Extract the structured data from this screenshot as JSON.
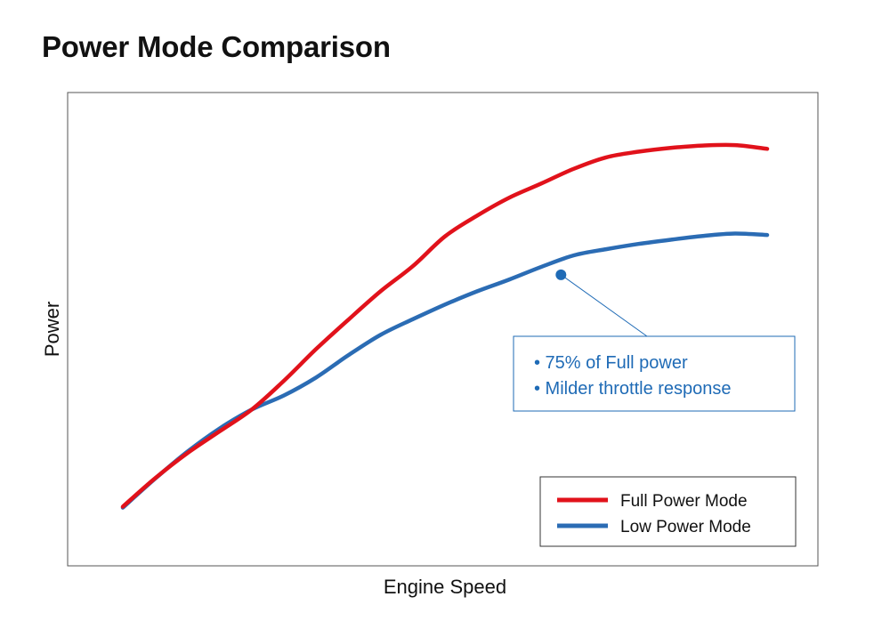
{
  "chart_data": {
    "type": "line",
    "title": "Power Mode Comparison",
    "xlabel": "Engine Speed",
    "ylabel": "Power",
    "xlim": [
      0,
      100
    ],
    "ylim": [
      0,
      100
    ],
    "axis_ticks": false,
    "grid": false,
    "legend_position": "bottom-right",
    "x": [
      0,
      5,
      10,
      15,
      20,
      25,
      30,
      35,
      40,
      45,
      50,
      55,
      60,
      65,
      70,
      75,
      80,
      85,
      90,
      95,
      100
    ],
    "series": [
      {
        "name": "Full Power Mode",
        "color": "#e1121b",
        "values": [
          12.5,
          18.5,
          23.8,
          28.4,
          33.0,
          39.1,
          45.8,
          52.0,
          58.0,
          63.3,
          69.6,
          74.0,
          77.8,
          80.8,
          83.9,
          86.3,
          87.5,
          88.3,
          88.8,
          88.9,
          88.1
        ]
      },
      {
        "name": "Low Power Mode",
        "color": "#2b6cb4",
        "values": [
          12.3,
          18.4,
          24.1,
          29.0,
          33.0,
          36.0,
          39.8,
          44.5,
          48.8,
          52.1,
          55.2,
          58.0,
          60.5,
          63.2,
          65.6,
          66.9,
          68.0,
          68.9,
          69.7,
          70.2,
          69.9
        ]
      }
    ],
    "annotation": {
      "point": {
        "x": 68,
        "y": 61.5
      },
      "color": "#1f6bb6",
      "lines": [
        "• 75% of Full power",
        "• Milder throttle response"
      ]
    }
  }
}
